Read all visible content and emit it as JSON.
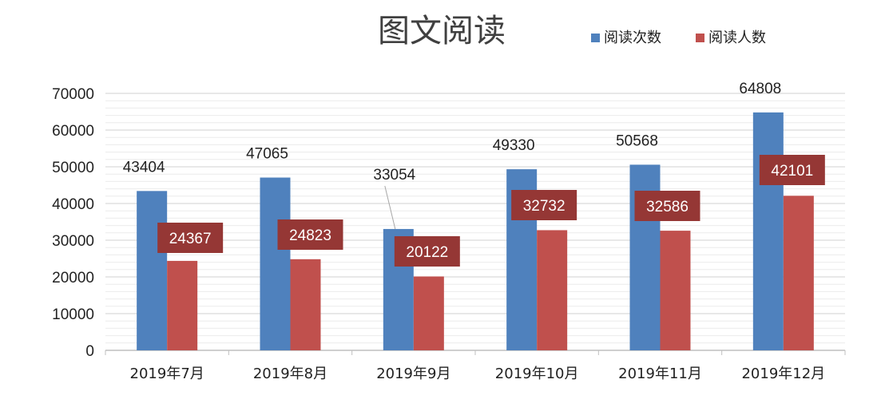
{
  "chart_data": {
    "type": "bar",
    "title": "图文阅读",
    "categories": [
      "2019年7月",
      "2019年8月",
      "2019年9月",
      "2019年10月",
      "2019年11月",
      "2019年12月"
    ],
    "series": [
      {
        "name": "阅读次数",
        "color": "#4F81BD",
        "values": [
          43404,
          47065,
          33054,
          49330,
          50568,
          64808
        ]
      },
      {
        "name": "阅读人数",
        "color": "#C0504D",
        "values": [
          24367,
          24823,
          20122,
          32732,
          32586,
          42101
        ]
      }
    ],
    "ylim": [
      0,
      70000
    ],
    "yticks": [
      0,
      10000,
      20000,
      30000,
      40000,
      50000,
      60000,
      70000
    ],
    "grid": true,
    "legend_position": "top-right",
    "data_labels": true,
    "label_box_color": "#953735"
  }
}
